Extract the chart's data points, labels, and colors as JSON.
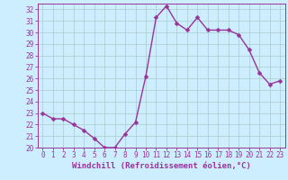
{
  "x": [
    0,
    1,
    2,
    3,
    4,
    5,
    6,
    7,
    8,
    9,
    10,
    11,
    12,
    13,
    14,
    15,
    16,
    17,
    18,
    19,
    20,
    21,
    22,
    23
  ],
  "y": [
    23,
    22.5,
    22.5,
    22,
    21.5,
    20.8,
    20.0,
    20.0,
    21.2,
    22.2,
    26.2,
    31.3,
    32.3,
    30.8,
    30.2,
    31.3,
    30.2,
    30.2,
    30.2,
    29.8,
    28.5,
    26.5,
    25.5,
    25.8
  ],
  "line_color": "#993399",
  "marker_color": "#993399",
  "bg_color": "#cceeff",
  "grid_color": "#aacccc",
  "xlabel": "Windchill (Refroidissement éolien,°C)",
  "ylim_min": 20,
  "ylim_max": 32.5,
  "xlim_min": -0.5,
  "xlim_max": 23.5,
  "yticks": [
    20,
    21,
    22,
    23,
    24,
    25,
    26,
    27,
    28,
    29,
    30,
    31,
    32
  ],
  "xticks": [
    0,
    1,
    2,
    3,
    4,
    5,
    6,
    7,
    8,
    9,
    10,
    11,
    12,
    13,
    14,
    15,
    16,
    17,
    18,
    19,
    20,
    21,
    22,
    23
  ],
  "font_color": "#993399",
  "font_size": 5.5,
  "label_font_size": 6.5,
  "line_width": 1.0,
  "marker_size": 2.5
}
